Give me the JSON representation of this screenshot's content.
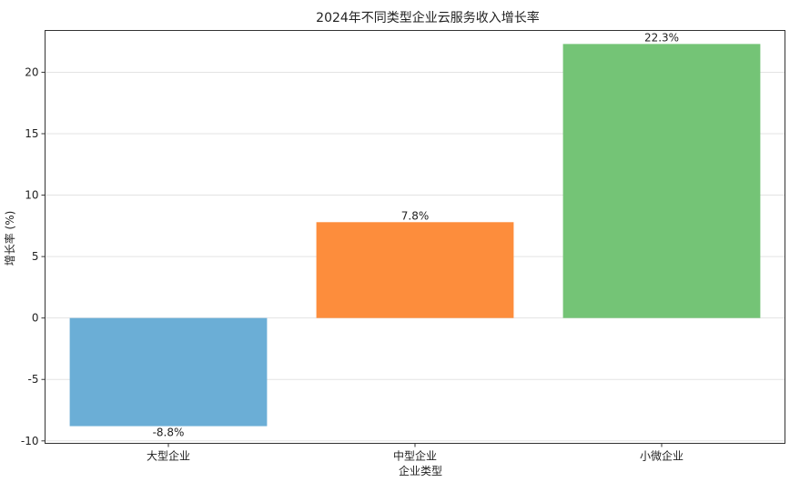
{
  "chart_data": {
    "type": "bar",
    "title": "2024年不同类型企业云服务收入增长率",
    "xlabel": "企业类型",
    "ylabel": "增长率 (%)",
    "categories": [
      "大型企业",
      "中型企业",
      "小微企业"
    ],
    "values": [
      -8.8,
      7.8,
      22.3
    ],
    "value_labels": [
      "-8.8%",
      "7.8%",
      "22.3%"
    ],
    "colors": [
      "#6baed6",
      "#fd8d3c",
      "#74c476"
    ],
    "ylim": [
      -10.2,
      23.4
    ],
    "yticks": [
      -10,
      -5,
      0,
      5,
      10,
      15,
      20
    ],
    "grid": "horizontal",
    "legend": "none"
  }
}
